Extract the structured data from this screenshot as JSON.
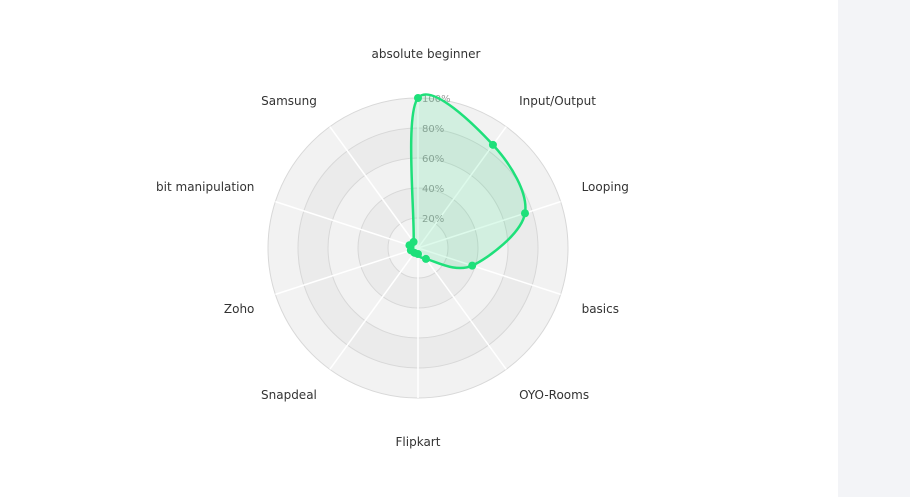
{
  "chart_data": {
    "type": "radar",
    "categories": [
      "absolute beginner",
      "Input/Output",
      "Looping",
      "basics",
      "OYO-Rooms",
      "Flipkart",
      "Snapdeal",
      "Zoho",
      "bit manipulation",
      "Samsung"
    ],
    "series": [
      {
        "values": [
          100,
          85,
          75,
          38,
          9,
          4,
          4,
          5,
          6,
          5
        ]
      }
    ],
    "ticks": [
      "20%",
      "40%",
      "60%",
      "80%",
      "100%"
    ],
    "tick_values": [
      20,
      40,
      60,
      80,
      100
    ],
    "rlim": [
      0,
      100
    ],
    "grid": true,
    "legend": "none",
    "colors": {
      "series_line": "#1ee07a",
      "series_fill": "rgba(30, 224, 122, 0.15)",
      "ring_outer": "#f2f2f2",
      "ring_inner": "#ebebeb",
      "ring_stroke": "#d8d8d8",
      "spoke": "#ffffff"
    }
  }
}
